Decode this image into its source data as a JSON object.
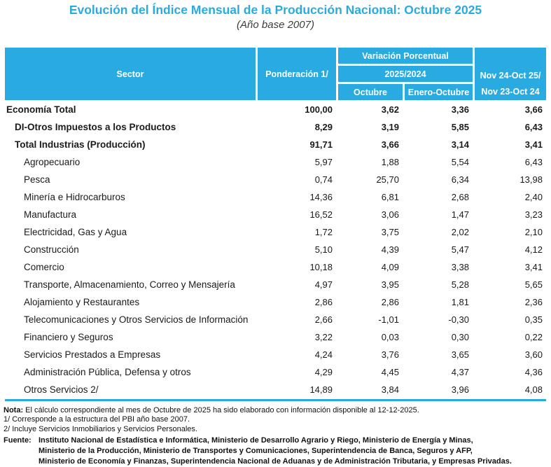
{
  "title": "Evolución del Índice Mensual de la Producción Nacional: Octubre 2025",
  "subtitle": "(Año base 2007)",
  "colors": {
    "accent": "#29ABE2",
    "header_text": "#FFFFFF",
    "body_text": "#1A1A1A"
  },
  "table": {
    "header": {
      "sector": "Sector",
      "ponderacion": "Ponderación 1/",
      "variacion": "Variación Porcentual",
      "group_2025_2024": "2025/2024",
      "col_octubre": "Octubre",
      "col_enero_octubre": "Enero-Octubre",
      "col_nov_line1": "Nov 24-Oct 25/",
      "col_nov_line2": "Nov 23-Oct 24"
    },
    "rows": [
      {
        "sector": "Economía Total",
        "indent": 0,
        "bold": true,
        "ponderacion": "100,00",
        "octubre": "3,62",
        "enero_octubre": "3,36",
        "nov": "3,66"
      },
      {
        "sector": "DI-Otros Impuestos a los Productos",
        "indent": 1,
        "bold": true,
        "ponderacion": "8,29",
        "octubre": "3,19",
        "enero_octubre": "5,85",
        "nov": "6,43"
      },
      {
        "sector": "Total Industrias (Producción)",
        "indent": 1,
        "bold": true,
        "ponderacion": "91,71",
        "octubre": "3,66",
        "enero_octubre": "3,14",
        "nov": "3,41"
      },
      {
        "sector": "Agropecuario",
        "indent": 2,
        "bold": false,
        "ponderacion": "5,97",
        "octubre": "1,88",
        "enero_octubre": "5,54",
        "nov": "6,43"
      },
      {
        "sector": "Pesca",
        "indent": 2,
        "bold": false,
        "ponderacion": "0,74",
        "octubre": "25,70",
        "enero_octubre": "6,34",
        "nov": "13,98"
      },
      {
        "sector": "Minería e Hidrocarburos",
        "indent": 2,
        "bold": false,
        "ponderacion": "14,36",
        "octubre": "6,81",
        "enero_octubre": "2,68",
        "nov": "2,40"
      },
      {
        "sector": "Manufactura",
        "indent": 2,
        "bold": false,
        "ponderacion": "16,52",
        "octubre": "3,06",
        "enero_octubre": "1,47",
        "nov": "3,23"
      },
      {
        "sector": "Electricidad, Gas y Agua",
        "indent": 2,
        "bold": false,
        "ponderacion": "1,72",
        "octubre": "3,75",
        "enero_octubre": "2,02",
        "nov": "2,10"
      },
      {
        "sector": "Construcción",
        "indent": 2,
        "bold": false,
        "ponderacion": "5,10",
        "octubre": "4,39",
        "enero_octubre": "5,47",
        "nov": "4,12"
      },
      {
        "sector": "Comercio",
        "indent": 2,
        "bold": false,
        "ponderacion": "10,18",
        "octubre": "4,09",
        "enero_octubre": "3,38",
        "nov": "3,41"
      },
      {
        "sector": "Transporte, Almacenamiento, Correo y Mensajería",
        "indent": 2,
        "bold": false,
        "ponderacion": "4,97",
        "octubre": "3,95",
        "enero_octubre": "5,28",
        "nov": "5,65"
      },
      {
        "sector": "Alojamiento y Restaurantes",
        "indent": 2,
        "bold": false,
        "ponderacion": "2,86",
        "octubre": "2,86",
        "enero_octubre": "1,81",
        "nov": "2,36"
      },
      {
        "sector": "Telecomunicaciones y Otros Servicios de Información",
        "indent": 2,
        "bold": false,
        "ponderacion": "2,66",
        "octubre": "-1,01",
        "enero_octubre": "-0,30",
        "nov": "0,35"
      },
      {
        "sector": "Financiero y Seguros",
        "indent": 2,
        "bold": false,
        "ponderacion": "3,22",
        "octubre": "0,03",
        "enero_octubre": "0,30",
        "nov": "0,22"
      },
      {
        "sector": "Servicios Prestados a Empresas",
        "indent": 2,
        "bold": false,
        "ponderacion": "4,24",
        "octubre": "3,76",
        "enero_octubre": "3,65",
        "nov": "3,60"
      },
      {
        "sector": "Administración Pública, Defensa y otros",
        "indent": 2,
        "bold": false,
        "ponderacion": "4,29",
        "octubre": "4,45",
        "enero_octubre": "4,37",
        "nov": "4,36"
      },
      {
        "sector": "Otros Servicios 2/",
        "indent": 2,
        "bold": false,
        "ponderacion": "14,89",
        "octubre": "3,84",
        "enero_octubre": "3,96",
        "nov": "4,08"
      }
    ]
  },
  "footer": {
    "nota_label": "Nota:",
    "nota_text": "El cálculo correspondiente al mes de Octubre de 2025 ha sido elaborado con información disponible al 12-12-2025.",
    "footnote1": "1/ Corresponde a la estructura del PBI año base 2007.",
    "footnote2": "2/ Incluye Servicios Inmobiliarios y Servicios Personales.",
    "fuente_label": "Fuente:",
    "fuente_lines": [
      "Instituto Nacional de Estadística e Informática, Ministerio de Desarrollo Agrario y Riego, Ministerio de Energía y Minas,",
      "Ministerio de la Producción, Ministerio de Transportes y Comunicaciones, Superintendencia de Banca, Seguros y AFP,",
      "Ministerio de Economía y Finanzas, Superintendencia Nacional de Aduanas y de Administración Tributaria, y Empresas Privadas."
    ]
  }
}
